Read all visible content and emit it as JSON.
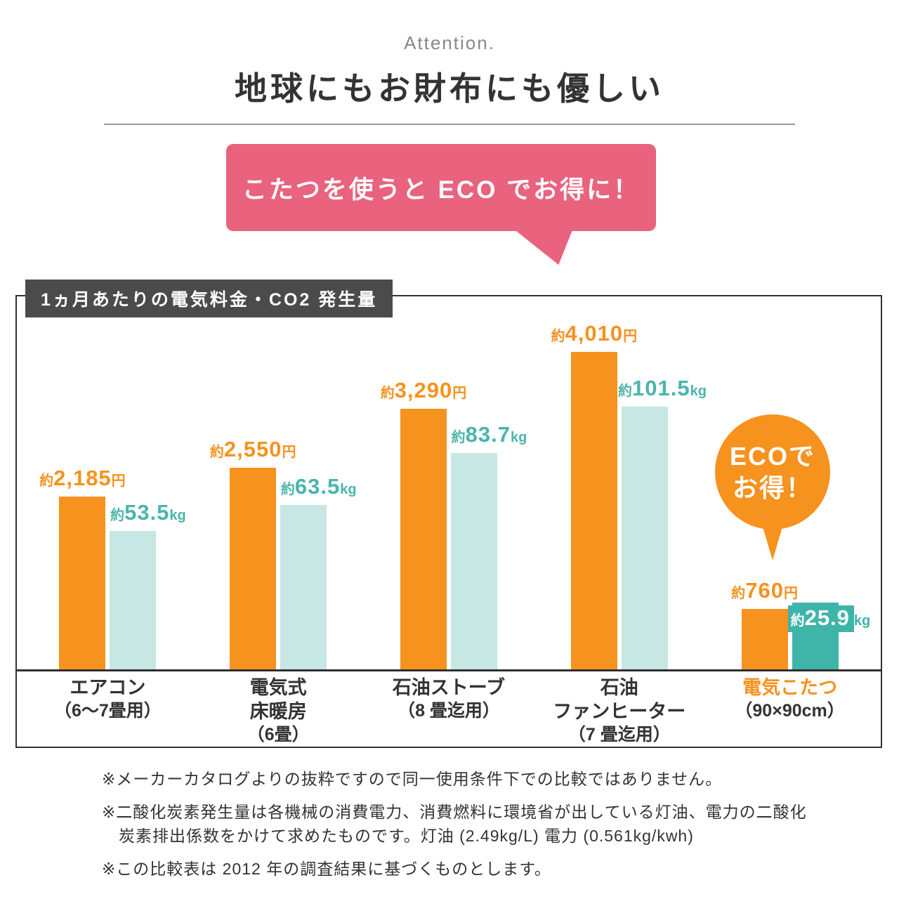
{
  "header": {
    "eyebrow": "Attention.",
    "title": "地球にもお財布にも優しい",
    "bubble_text": "こたつを使うと ECO でお得に！"
  },
  "chart": {
    "box_label": "1ヵ月あたりの電気料金・CO2 発生量",
    "badge_line1": "ECOで",
    "badge_line2": "お得！"
  },
  "chart_data": {
    "type": "bar",
    "title": "1ヵ月あたりの電気料金・CO2 発生量",
    "legend_position": "none",
    "grid": false,
    "value_axis_hidden": true,
    "categories": [
      {
        "name": "エアコン",
        "sub": "（6〜7畳用）"
      },
      {
        "name": "電気式\n床暖房",
        "sub": "（6畳）"
      },
      {
        "name": "石油ストーブ",
        "sub": "（8 畳迄用）"
      },
      {
        "name": "石油\nファンヒーター",
        "sub": "（7 畳迄用）"
      },
      {
        "name": "電気こたつ",
        "sub": "（90×90cm）"
      }
    ],
    "series": [
      {
        "name": "1ヵ月あたりの電気料金（円）",
        "prefix": "約",
        "unit": "円",
        "values": [
          2185,
          2550,
          3290,
          4010,
          760
        ],
        "display": [
          "2,185",
          "2,550",
          "3,290",
          "4,010",
          "760"
        ],
        "axis_max": 4010
      },
      {
        "name": "1ヵ月あたりのCO2発生量（kg）",
        "prefix": "約",
        "unit": "kg",
        "values": [
          53.5,
          63.5,
          83.7,
          101.5,
          25.9
        ],
        "display": [
          "53.5",
          "63.5",
          "83.7",
          "101.5",
          "25.9"
        ],
        "axis_max": 101.5
      }
    ],
    "highlight_index": 4,
    "colors": {
      "cost_bar": "#f6921e",
      "cost_label": "#f6921e",
      "co2_bar": "#c6e7e3",
      "co2_label": "#4ab5ab",
      "co2_bar_highlight": "#3fb4a9",
      "highlight_category": "#f6921e",
      "bubble": "#e9637e",
      "badge": "#f6921e",
      "label_box": "#4b4b4b"
    }
  },
  "footnotes": [
    "※メーカーカタログよりの抜粋ですので同一使用条件下での比較ではありません。",
    "※二酸化炭素発生量は各機械の消費電力、消費燃料に環境省が出している灯油、電力の二酸化\n　炭素排出係数をかけて求めたものです。灯油 (2.49kg/L) 電力 (0.561kg/kwh)",
    "※この比較表は 2012 年の調査結果に基づくものとします。"
  ]
}
